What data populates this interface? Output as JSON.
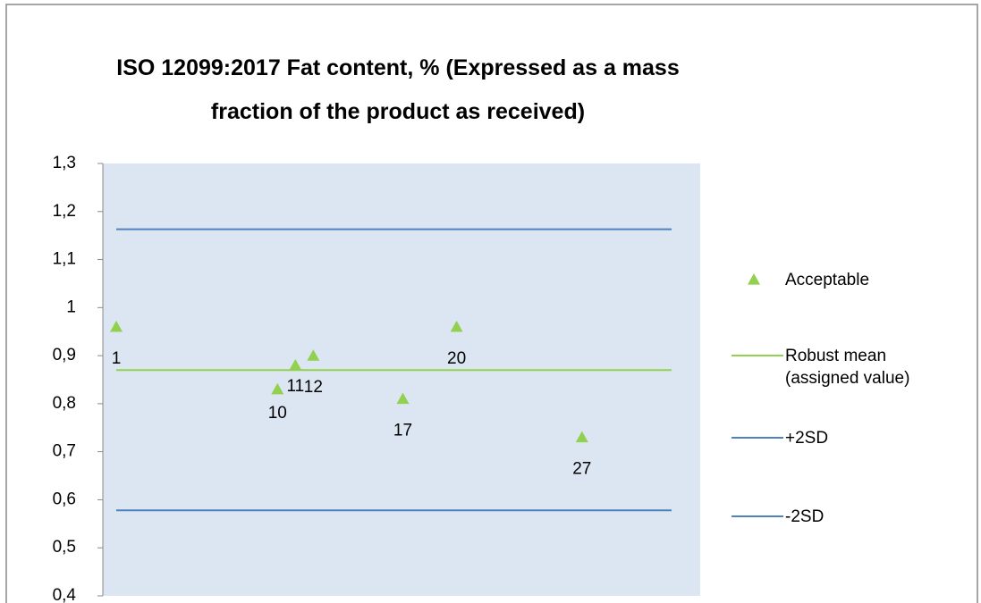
{
  "chart_data": {
    "type": "scatter",
    "title": "ISO 12099:2017 Fat content, % (Expressed as a mass fraction of the product as received)",
    "series": [
      {
        "name": "Acceptable",
        "color": "#92d050",
        "marker": "triangle",
        "x": [
          1,
          10,
          11,
          12,
          17,
          20,
          27
        ],
        "values": [
          0.96,
          0.83,
          0.88,
          0.9,
          0.81,
          0.96,
          0.73
        ]
      }
    ],
    "lines": [
      {
        "name": "Robust mean (assigned value)",
        "color": "#92d050",
        "x": [
          1,
          32
        ],
        "values": [
          0.87,
          0.87
        ]
      },
      {
        "name": "+2SD",
        "color": "#4f81bd",
        "x": [
          1,
          32
        ],
        "values": [
          1.163,
          1.163
        ]
      },
      {
        "name": "-2SD",
        "color": "#4f81bd",
        "x": [
          1,
          32
        ],
        "values": [
          0.578,
          0.578
        ]
      }
    ],
    "xlim": [
      0.25,
      33.6
    ],
    "ylim": [
      0.4,
      1.3
    ],
    "yticks": [
      {
        "value": 0.4,
        "label": "0,4"
      },
      {
        "value": 0.5,
        "label": "0,5"
      },
      {
        "value": 0.6,
        "label": "0,6"
      },
      {
        "value": 0.7,
        "label": "0,7"
      },
      {
        "value": 0.8,
        "label": "0,8"
      },
      {
        "value": 0.9,
        "label": "0,9"
      },
      1,
      {
        "value": 1.1,
        "label": "1,1"
      },
      {
        "value": 1.2,
        "label": "1,2"
      },
      {
        "value": 1.3,
        "label": "1,3"
      }
    ],
    "grid": false,
    "plot_background": "#dce6f2",
    "legend": "right"
  }
}
